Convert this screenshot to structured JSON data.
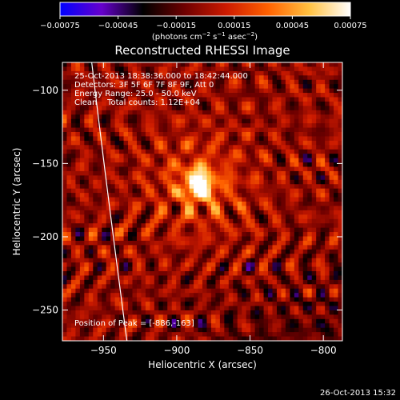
{
  "chart_data": {
    "type": "heatmap",
    "title": "Reconstructed RHESSI Image",
    "xlabel": "Heliocentric X (arcsec)",
    "ylabel": "Heliocentric Y (arcsec)",
    "xlim": [
      -978,
      -787
    ],
    "ylim": [
      -271,
      -81
    ],
    "x_ticks": [
      -950,
      -900,
      -850,
      -800
    ],
    "y_ticks": [
      -100,
      -150,
      -200,
      -250
    ],
    "x_tick_labels": [
      "−950",
      "−900",
      "−850",
      "−800"
    ],
    "y_tick_labels": [
      "−100",
      "−150",
      "−200",
      "−250"
    ],
    "colorbar": {
      "range": [
        -0.00075,
        0.00075
      ],
      "ticks": [
        -0.00075,
        -0.00045,
        -0.00015,
        0.00015,
        0.00045,
        0.00075
      ],
      "tick_labels": [
        "−0.00075",
        "−0.00045",
        "−0.00015",
        "0.00015",
        "0.00045",
        "0.00075"
      ],
      "units_main": "(photons cm",
      "units_sup1": "−2",
      "units_mid": " s",
      "units_sup2": "−1",
      "units_mid2": " asec",
      "units_sup3": "−2",
      "units_end": ")",
      "colormap": [
        "#0000ff",
        "#6600cc",
        "#000000",
        "#6e0000",
        "#cc1a00",
        "#ff6000",
        "#ffc040",
        "#ffffff"
      ]
    },
    "annotations": {
      "time_range": "25-Oct-2013 18:38:36.000 to 18:42:44.000",
      "detectors": "Detectors: 3F 5F 6F 7F 8F 9F, Att 0",
      "energy": "Energy Range: 25.0 - 50.0 keV",
      "clean": "Clean    Total counts: 1.12E+04",
      "peak": "Position of Peak = [-886,-163]"
    },
    "peak": {
      "x": -886,
      "y": -163
    },
    "limb_curve": [
      [
        -958,
        -81
      ],
      [
        -948,
        -165
      ],
      [
        -934,
        -271
      ]
    ]
  },
  "footer": {
    "timestamp": "26-Oct-2013 15:32"
  }
}
